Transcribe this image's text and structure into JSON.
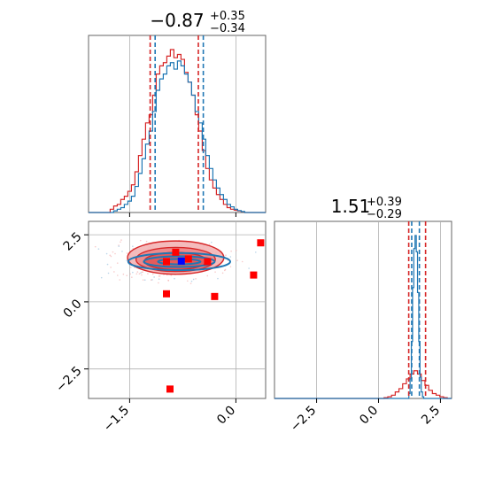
{
  "chart_data": [
    {
      "type": "histogram",
      "panel": "top-left",
      "title_value": "−0.87",
      "title_sup": "+0.35",
      "title_sub": "−0.34",
      "xlim": [
        -2.08,
        0.42
      ],
      "xticks": [
        -1.5,
        0.0
      ],
      "grid": true,
      "series": [
        {
          "color": "#d62728",
          "x": [
            -1.75,
            -1.7,
            -1.65,
            -1.6,
            -1.55,
            -1.5,
            -1.45,
            -1.4,
            -1.35,
            -1.3,
            -1.25,
            -1.2,
            -1.15,
            -1.1,
            -1.05,
            -1.0,
            -0.95,
            -0.9,
            -0.85,
            -0.8,
            -0.75,
            -0.7,
            -0.65,
            -0.6,
            -0.55,
            -0.5,
            -0.45,
            -0.4,
            -0.35,
            -0.3,
            -0.25,
            -0.2,
            -0.15,
            -0.1,
            -0.05,
            0.0,
            0.05,
            0.1
          ],
          "values": [
            0.02,
            0.04,
            0.05,
            0.08,
            0.1,
            0.13,
            0.17,
            0.25,
            0.35,
            0.45,
            0.55,
            0.6,
            0.72,
            0.85,
            0.9,
            0.92,
            0.96,
            1.0,
            0.95,
            0.97,
            0.94,
            0.86,
            0.8,
            0.72,
            0.6,
            0.5,
            0.38,
            0.27,
            0.2,
            0.15,
            0.11,
            0.08,
            0.05,
            0.03,
            0.02,
            0.015,
            0.01,
            0.005
          ]
        },
        {
          "color": "#1f77b4",
          "x": [
            -1.75,
            -1.7,
            -1.65,
            -1.6,
            -1.55,
            -1.5,
            -1.45,
            -1.4,
            -1.35,
            -1.3,
            -1.25,
            -1.2,
            -1.15,
            -1.1,
            -1.05,
            -1.0,
            -0.95,
            -0.9,
            -0.85,
            -0.8,
            -0.75,
            -0.7,
            -0.65,
            -0.6,
            -0.55,
            -0.5,
            -0.45,
            -0.4,
            -0.35,
            -0.3,
            -0.25,
            -0.2,
            -0.15,
            -0.1,
            -0.05,
            0.0,
            0.05,
            0.1
          ],
          "values": [
            0.0,
            0.01,
            0.02,
            0.03,
            0.05,
            0.07,
            0.1,
            0.16,
            0.24,
            0.33,
            0.42,
            0.5,
            0.62,
            0.75,
            0.82,
            0.85,
            0.9,
            0.92,
            0.88,
            0.93,
            0.9,
            0.85,
            0.8,
            0.72,
            0.62,
            0.55,
            0.45,
            0.35,
            0.27,
            0.2,
            0.15,
            0.11,
            0.08,
            0.05,
            0.035,
            0.02,
            0.012,
            0.006
          ]
        }
      ],
      "quantile_lines": [
        {
          "color": "#d62728",
          "x": -1.21
        },
        {
          "color": "#1f77b4",
          "x": -1.14
        },
        {
          "color": "#d62728",
          "x": -0.53
        },
        {
          "color": "#1f77b4",
          "x": -0.46
        }
      ]
    },
    {
      "type": "contour-scatter",
      "panel": "bottom-left",
      "xlim": [
        -2.08,
        0.42
      ],
      "ylim": [
        -3.6,
        3.0
      ],
      "xticks": [
        -1.5,
        0.0
      ],
      "yticks": [
        -2.5,
        0.0,
        2.5
      ],
      "grid": true,
      "contours": [
        {
          "color": "#d62728",
          "fill": "#f3b4b5",
          "center": [
            -0.85,
            1.65
          ],
          "rx": 0.68,
          "ry": 0.62
        },
        {
          "color": "#d62728",
          "fill": "#ec8586",
          "center": [
            -0.85,
            1.58
          ],
          "rx": 0.56,
          "ry": 0.45
        },
        {
          "color": "#d62728",
          "fill": "#e25555",
          "center": [
            -0.85,
            1.52
          ],
          "rx": 0.44,
          "ry": 0.32
        },
        {
          "color": "#1f77b4",
          "fill": "none",
          "center": [
            -0.8,
            1.5
          ],
          "rx": 0.72,
          "ry": 0.32
        },
        {
          "color": "#1f77b4",
          "fill": "none",
          "center": [
            -0.8,
            1.5
          ],
          "rx": 0.5,
          "ry": 0.2
        },
        {
          "color": "#1f77b4",
          "fill": "none",
          "center": [
            -0.8,
            1.5
          ],
          "rx": 0.3,
          "ry": 0.1
        }
      ],
      "points": [
        {
          "color": "#ff0000",
          "x": -0.85,
          "y": 1.85
        },
        {
          "color": "#ff0000",
          "x": -0.98,
          "y": 1.5
        },
        {
          "color": "#ff0000",
          "x": -0.67,
          "y": 1.6
        },
        {
          "color": "#ff0000",
          "x": -0.4,
          "y": 1.5
        },
        {
          "color": "#ff0000",
          "x": 0.35,
          "y": 2.2
        },
        {
          "color": "#ff0000",
          "x": 0.25,
          "y": 1.0
        },
        {
          "color": "#ff0000",
          "x": -0.98,
          "y": 0.3
        },
        {
          "color": "#ff0000",
          "x": -0.3,
          "y": 0.2
        },
        {
          "color": "#ff0000",
          "x": -0.93,
          "y": -3.25
        },
        {
          "color": "#0000ff",
          "x": -0.77,
          "y": 1.52
        }
      ]
    },
    {
      "type": "histogram",
      "panel": "bottom-right",
      "title_value": "1.51",
      "title_sup": "+0.39",
      "title_sub": "−0.29",
      "xlim": [
        -4.2,
        2.95
      ],
      "xticks": [
        -2.5,
        0.0,
        2.5
      ],
      "grid": true,
      "series": [
        {
          "color": "#d62728",
          "x": [
            0.3,
            0.45,
            0.6,
            0.75,
            0.9,
            1.05,
            1.2,
            1.35,
            1.5,
            1.65,
            1.8,
            1.95,
            2.1,
            2.25,
            2.4,
            2.55,
            2.7
          ],
          "values": [
            0.005,
            0.01,
            0.02,
            0.04,
            0.06,
            0.09,
            0.12,
            0.15,
            0.17,
            0.15,
            0.11,
            0.08,
            0.05,
            0.03,
            0.02,
            0.01,
            0.005
          ]
        },
        {
          "color": "#1f77b4",
          "x": [
            1.25,
            1.3,
            1.35,
            1.4,
            1.45,
            1.5,
            1.55,
            1.6,
            1.65,
            1.7,
            1.75,
            1.8
          ],
          "values": [
            0.03,
            0.12,
            0.35,
            0.68,
            0.92,
            1.0,
            0.9,
            0.65,
            0.35,
            0.13,
            0.04,
            0.01
          ]
        }
      ],
      "quantile_lines": [
        {
          "color": "#d62728",
          "x": 1.22
        },
        {
          "color": "#1f77b4",
          "x": 1.34
        },
        {
          "color": "#1f77b4",
          "x": 1.65
        },
        {
          "color": "#d62728",
          "x": 1.9
        }
      ]
    }
  ],
  "tick_labels": {
    "x_left": [
      "−1.5",
      "0.0"
    ],
    "y_left": [
      "2.5",
      "0.0",
      "−2.5"
    ],
    "x_right": [
      "−2.5",
      "0.0",
      "2.5"
    ]
  }
}
